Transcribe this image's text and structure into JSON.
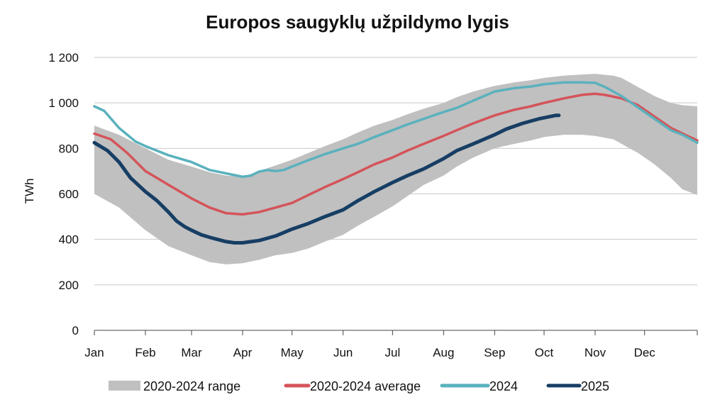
{
  "chart_data": {
    "type": "line",
    "title": "Europos saugyklų užpildymo lygis",
    "ylabel": "TWh",
    "xlabel": "",
    "ylim": [
      0,
      1200
    ],
    "yticks": [
      0,
      200,
      400,
      600,
      800,
      1000,
      1200
    ],
    "ytick_labels": [
      "0",
      "200",
      "400",
      "600",
      "800",
      "1 000",
      "1 200"
    ],
    "x_range": [
      0,
      366
    ],
    "months": [
      {
        "label": "Jan",
        "day": 0
      },
      {
        "label": "Feb",
        "day": 31
      },
      {
        "label": "Mar",
        "day": 59
      },
      {
        "label": "Apr",
        "day": 90
      },
      {
        "label": "May",
        "day": 120
      },
      {
        "label": "Jun",
        "day": 151
      },
      {
        "label": "Jul",
        "day": 181
      },
      {
        "label": "Aug",
        "day": 212
      },
      {
        "label": "Sep",
        "day": 243
      },
      {
        "label": "Oct",
        "day": 273
      },
      {
        "label": "Nov",
        "day": 304
      },
      {
        "label": "Dec",
        "day": 334
      }
    ],
    "grid": true,
    "legend_position": "bottom",
    "range": {
      "name": "2020-2024 range",
      "color": "#c0c0c0",
      "x": [
        0,
        15,
        31,
        45,
        59,
        70,
        80,
        90,
        100,
        110,
        120,
        130,
        140,
        151,
        160,
        170,
        181,
        190,
        200,
        212,
        220,
        230,
        243,
        255,
        265,
        273,
        285,
        296,
        304,
        315,
        320,
        330,
        340,
        350,
        357,
        366
      ],
      "upper": [
        900,
        860,
        800,
        750,
        720,
        695,
        680,
        675,
        700,
        725,
        750,
        780,
        810,
        840,
        870,
        900,
        925,
        950,
        975,
        1000,
        1025,
        1050,
        1075,
        1090,
        1100,
        1110,
        1120,
        1125,
        1128,
        1120,
        1110,
        1070,
        1030,
        1000,
        990,
        985
      ],
      "lower": [
        600,
        540,
        440,
        370,
        330,
        300,
        290,
        295,
        310,
        330,
        340,
        360,
        390,
        420,
        460,
        500,
        545,
        590,
        640,
        680,
        720,
        760,
        800,
        820,
        835,
        850,
        860,
        860,
        855,
        840,
        820,
        780,
        730,
        670,
        620,
        595
      ]
    },
    "series": [
      {
        "name": "2020-2024 average",
        "color": "#d4545a",
        "width": 3.5,
        "x": [
          0,
          10,
          20,
          31,
          45,
          59,
          70,
          80,
          90,
          100,
          110,
          120,
          130,
          140,
          151,
          160,
          170,
          181,
          190,
          200,
          212,
          220,
          230,
          243,
          255,
          265,
          273,
          285,
          296,
          304,
          310,
          320,
          330,
          340,
          350,
          360,
          366
        ],
        "y": [
          865,
          840,
          780,
          700,
          640,
          580,
          540,
          515,
          510,
          520,
          540,
          560,
          595,
          630,
          665,
          695,
          730,
          760,
          790,
          820,
          855,
          880,
          910,
          945,
          970,
          985,
          1000,
          1020,
          1035,
          1040,
          1035,
          1020,
          990,
          940,
          890,
          855,
          835
        ]
      },
      {
        "name": "2024",
        "color": "#5ab1bd",
        "width": 3.5,
        "x": [
          0,
          6,
          15,
          25,
          31,
          45,
          59,
          70,
          80,
          90,
          95,
          100,
          105,
          110,
          115,
          120,
          130,
          140,
          151,
          160,
          170,
          181,
          190,
          200,
          212,
          220,
          230,
          243,
          255,
          265,
          273,
          285,
          296,
          304,
          310,
          320,
          330,
          340,
          350,
          357,
          366
        ],
        "y": [
          985,
          965,
          890,
          830,
          810,
          770,
          740,
          705,
          690,
          675,
          680,
          698,
          705,
          700,
          705,
          720,
          748,
          775,
          800,
          820,
          850,
          880,
          905,
          930,
          960,
          978,
          1010,
          1050,
          1065,
          1072,
          1082,
          1090,
          1090,
          1088,
          1070,
          1030,
          980,
          930,
          880,
          860,
          825
        ]
      },
      {
        "name": "2025",
        "color": "#173e64",
        "width": 5,
        "x": [
          0,
          8,
          15,
          22,
          31,
          38,
          45,
          50,
          55,
          59,
          65,
          72,
          80,
          85,
          90,
          95,
          100,
          105,
          110,
          120,
          130,
          140,
          151,
          160,
          170,
          181,
          190,
          200,
          212,
          220,
          230,
          243,
          250,
          260,
          270,
          280,
          282
        ],
        "y": [
          825,
          790,
          740,
          670,
          610,
          570,
          520,
          480,
          455,
          440,
          420,
          405,
          390,
          385,
          385,
          390,
          395,
          405,
          415,
          445,
          470,
          500,
          530,
          570,
          610,
          650,
          680,
          710,
          755,
          790,
          820,
          860,
          885,
          910,
          930,
          945,
          945
        ]
      }
    ]
  }
}
